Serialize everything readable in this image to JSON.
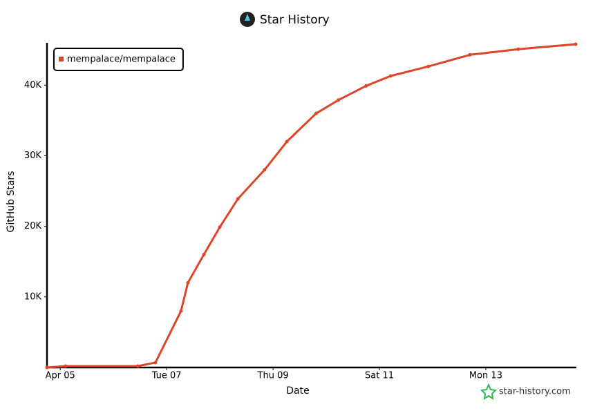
{
  "chart_data": {
    "type": "line",
    "title": "Star History",
    "x_label": "Date",
    "y_label": "GitHub Stars",
    "watermark": "star-history.com",
    "x": [
      4.75,
      5.1,
      6.46,
      6.79,
      7.27,
      7.4,
      7.7,
      8.0,
      8.34,
      8.84,
      9.26,
      9.81,
      10.23,
      10.75,
      11.21,
      11.92,
      12.7,
      13.61,
      14.69
    ],
    "series": [
      {
        "name": "mempalace/mempalace",
        "color": "#dd4528",
        "values": [
          0,
          200,
          200,
          700,
          8000,
          12000,
          16000,
          19900,
          23900,
          28000,
          32000,
          36000,
          37900,
          39900,
          41300,
          42650,
          44300,
          45100,
          45800
        ]
      }
    ],
    "xlim": [
      4.75,
      14.69
    ],
    "xticks": [
      {
        "value": 5,
        "label": "Apr 05"
      },
      {
        "value": 7,
        "label": "Tue 07"
      },
      {
        "value": 9,
        "label": "Thu 09"
      },
      {
        "value": 11,
        "label": "Sat 11"
      },
      {
        "value": 13,
        "label": "Mon 13"
      }
    ],
    "ylim": [
      0,
      46000
    ],
    "yticks": [
      {
        "value": 10000,
        "label": "10K"
      },
      {
        "value": 20000,
        "label": "20K"
      },
      {
        "value": 30000,
        "label": "30K"
      },
      {
        "value": 40000,
        "label": "40K"
      }
    ],
    "legend": "top-left"
  }
}
